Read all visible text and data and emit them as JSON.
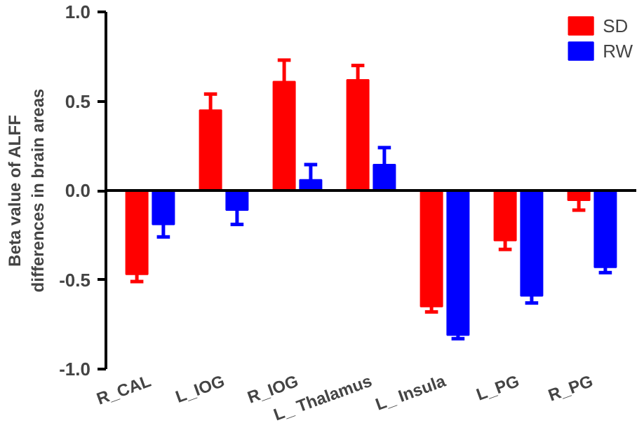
{
  "chart_data": {
    "type": "bar",
    "ylabel": "Beta value of ALFF\ndifferences in brain areas",
    "categories": [
      "R_CAL",
      "L_IOG",
      "R_IOG",
      "L_ Thalamus",
      "L_ Insula",
      "L_PG",
      "R_PG"
    ],
    "series": [
      {
        "name": "SD",
        "color": "#ff0000",
        "values": [
          -0.47,
          0.45,
          0.61,
          0.62,
          -0.65,
          -0.28,
          -0.055
        ],
        "errors": [
          [
            -0.51,
            -0.47
          ],
          [
            0.45,
            0.54
          ],
          [
            0.61,
            0.73
          ],
          [
            0.62,
            0.7
          ],
          [
            -0.68,
            -0.65
          ],
          [
            -0.33,
            -0.28
          ],
          [
            -0.11,
            -0.055
          ]
        ]
      },
      {
        "name": "RW",
        "color": "#0000ff",
        "values": [
          -0.19,
          -0.11,
          0.06,
          0.145,
          -0.81,
          -0.59,
          -0.43
        ],
        "errors": [
          [
            -0.26,
            -0.19
          ],
          [
            -0.19,
            -0.11
          ],
          [
            0.06,
            0.145
          ],
          [
            0.145,
            0.24
          ],
          [
            -0.83,
            -0.81
          ],
          [
            -0.63,
            -0.59
          ],
          [
            -0.46,
            -0.43
          ]
        ]
      }
    ],
    "ylim": [
      -1.0,
      1.0
    ],
    "yticks": [
      {
        "value": -1.0,
        "label": "-1.0"
      },
      {
        "value": -0.5,
        "label": "-0.5"
      },
      {
        "value": 0.0,
        "label": "0.0"
      },
      {
        "value": 0.5,
        "label": "0.5"
      },
      {
        "value": 1.0,
        "label": "1.0"
      }
    ],
    "ref_lines": [
      {
        "axis": "y",
        "value": 0,
        "color": "#000000"
      }
    ],
    "grid": false,
    "legend": "top right"
  }
}
